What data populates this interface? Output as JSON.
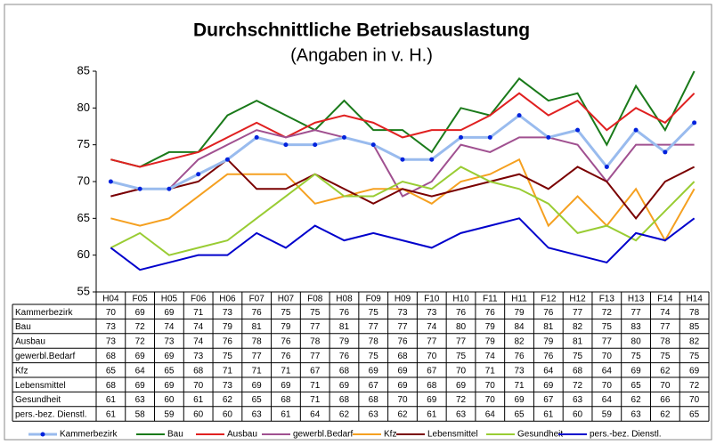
{
  "chart_data": {
    "type": "line",
    "title": "Durchschnittliche Betriebsauslastung",
    "subtitle": "(Angaben in v. H.)",
    "categories": [
      "H04",
      "F05",
      "H05",
      "F06",
      "H06",
      "F07",
      "H07",
      "F08",
      "H08",
      "F09",
      "H09",
      "F10",
      "H10",
      "F11",
      "H11",
      "F12",
      "H12",
      "F13",
      "H13",
      "F14",
      "H14"
    ],
    "ylim": [
      55,
      85
    ],
    "yticks": [
      55,
      60,
      65,
      70,
      75,
      80,
      85
    ],
    "grid": false,
    "legend": "bottom",
    "series": [
      {
        "name": "Kammerbezirk",
        "color": "#99bbee",
        "marker_color": "#0022dd",
        "values": [
          70,
          69,
          69,
          71,
          73,
          76,
          75,
          75,
          76,
          75,
          73,
          73,
          76,
          76,
          79,
          76,
          77,
          72,
          77,
          74,
          78
        ]
      },
      {
        "name": "Bau",
        "color": "#1a7a1a",
        "values": [
          73,
          72,
          74,
          74,
          79,
          81,
          79,
          77,
          81,
          77,
          77,
          74,
          80,
          79,
          84,
          81,
          82,
          75,
          83,
          77,
          85
        ]
      },
      {
        "name": "Ausbau",
        "color": "#e02020",
        "values": [
          73,
          72,
          73,
          74,
          76,
          78,
          76,
          78,
          79,
          78,
          76,
          77,
          77,
          79,
          82,
          79,
          81,
          77,
          80,
          78,
          82
        ]
      },
      {
        "name": "gewerbl.Bedarf",
        "color": "#a05090",
        "values": [
          68,
          69,
          69,
          73,
          75,
          77,
          76,
          77,
          76,
          75,
          68,
          70,
          75,
          74,
          76,
          76,
          75,
          70,
          75,
          75,
          75
        ]
      },
      {
        "name": "Kfz",
        "color": "#f5a020",
        "values": [
          65,
          64,
          65,
          68,
          71,
          71,
          71,
          67,
          68,
          69,
          69,
          67,
          70,
          71,
          73,
          64,
          68,
          64,
          69,
          62,
          69
        ]
      },
      {
        "name": "Lebensmittel",
        "color": "#7a0000",
        "values": [
          68,
          69,
          69,
          70,
          73,
          69,
          69,
          71,
          69,
          67,
          69,
          68,
          69,
          70,
          71,
          69,
          72,
          70,
          65,
          70,
          72
        ]
      },
      {
        "name": "Gesundheit",
        "color": "#99cc33",
        "values": [
          61,
          63,
          60,
          61,
          62,
          65,
          68,
          71,
          68,
          68,
          70,
          69,
          72,
          70,
          69,
          67,
          63,
          64,
          62,
          66,
          70
        ]
      },
      {
        "name": "pers.-bez. Dienstl.",
        "color": "#0000cc",
        "values": [
          61,
          58,
          59,
          60,
          60,
          63,
          61,
          64,
          62,
          63,
          62,
          61,
          63,
          64,
          65,
          61,
          60,
          59,
          63,
          62,
          65
        ]
      }
    ]
  }
}
